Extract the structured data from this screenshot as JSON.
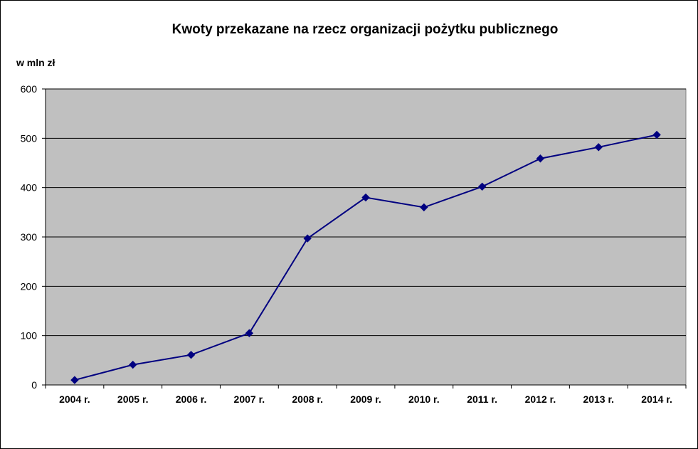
{
  "chart_data": {
    "type": "line",
    "title": "Kwoty  przekazane na rzecz organizacji pożytku publicznego",
    "ylabel": "w mln zł",
    "xlabel": "",
    "categories": [
      "2004 r.",
      "2005 r.",
      "2006 r.",
      "2007 r.",
      "2008 r.",
      "2009 r.",
      "2010 r.",
      "2011 r.",
      "2012 r.",
      "2013 r.",
      "2014 r."
    ],
    "series": [
      {
        "values": [
          10,
          41,
          61,
          105,
          297,
          380,
          360,
          402,
          459,
          482,
          507
        ]
      }
    ],
    "ylim": [
      0,
      600
    ],
    "yticks": [
      0,
      100,
      200,
      300,
      400,
      500,
      600
    ],
    "grid": true,
    "legend": "none",
    "colors": {
      "plot_background": "#C0C0C0",
      "line": "#000080",
      "marker": "#000080",
      "gridline": "#000000"
    }
  }
}
